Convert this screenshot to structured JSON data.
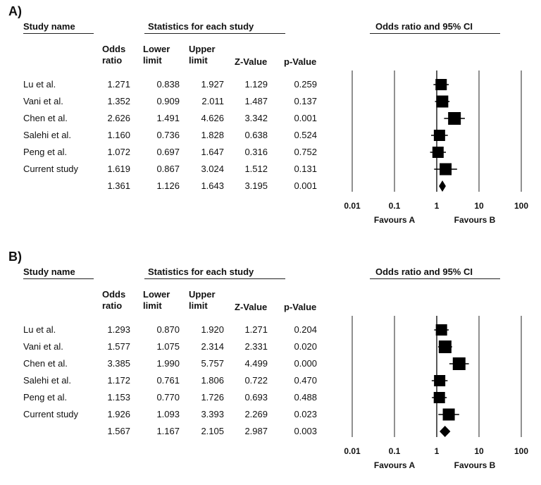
{
  "panels": [
    {
      "label": "A)",
      "headers": {
        "study": "Study name",
        "stats": "Statistics for each study",
        "plot": "Odds ratio and 95% CI"
      },
      "columns": {
        "odds_1": "Odds",
        "odds_2": "ratio",
        "lower_1": "Lower",
        "lower_2": "limit",
        "upper_1": "Upper",
        "upper_2": "limit",
        "z": "Z-Value",
        "p": "p-Value"
      },
      "rows": [
        {
          "name": "Lu et al.",
          "or": "1.271",
          "lower": "0.838",
          "upper": "1.927",
          "z": "1.129",
          "p": "0.259",
          "w": 16
        },
        {
          "name": "Vani et al.",
          "or": "1.352",
          "lower": "0.909",
          "upper": "2.011",
          "z": "1.487",
          "p": "0.137",
          "w": 17
        },
        {
          "name": "Chen et al.",
          "or": "2.626",
          "lower": "1.491",
          "upper": "4.626",
          "z": "3.342",
          "p": "0.001",
          "w": 18
        },
        {
          "name": "Salehi et al.",
          "or": "1.160",
          "lower": "0.736",
          "upper": "1.828",
          "z": "0.638",
          "p": "0.524",
          "w": 16
        },
        {
          "name": "Peng et al.",
          "or": "1.072",
          "lower": "0.697",
          "upper": "1.647",
          "z": "0.316",
          "p": "0.752",
          "w": 16
        },
        {
          "name": "Current study",
          "or": "1.619",
          "lower": "0.867",
          "upper": "3.024",
          "z": "1.512",
          "p": "0.131",
          "w": 17
        }
      ],
      "summary": {
        "name": "",
        "or": "1.361",
        "lower": "1.126",
        "upper": "1.643",
        "z": "3.195",
        "p": "0.001"
      },
      "axis": {
        "ticks": [
          "0.01",
          "0.1",
          "1",
          "10",
          "100"
        ],
        "tick_values": [
          0.01,
          0.1,
          1,
          10,
          100
        ],
        "scale": "log"
      },
      "favours_a": "Favours A",
      "favours_b": "Favours B"
    },
    {
      "label": "B)",
      "headers": {
        "study": "Study name",
        "stats": "Statistics for each study",
        "plot": "Odds ratio and 95% CI"
      },
      "columns": {
        "odds_1": "Odds",
        "odds_2": "ratio",
        "lower_1": "Lower",
        "lower_2": "limit",
        "upper_1": "Upper",
        "upper_2": "limit",
        "z": "Z-Value",
        "p": "p-Value"
      },
      "rows": [
        {
          "name": "Lu et al.",
          "or": "1.293",
          "lower": "0.870",
          "upper": "1.920",
          "z": "1.271",
          "p": "0.204",
          "w": 16
        },
        {
          "name": "Vani et al.",
          "or": "1.577",
          "lower": "1.075",
          "upper": "2.314",
          "z": "2.331",
          "p": "0.020",
          "w": 18
        },
        {
          "name": "Chen et al.",
          "or": "3.385",
          "lower": "1.990",
          "upper": "5.757",
          "z": "4.499",
          "p": "0.000",
          "w": 18
        },
        {
          "name": "Salehi et al.",
          "or": "1.172",
          "lower": "0.761",
          "upper": "1.806",
          "z": "0.722",
          "p": "0.470",
          "w": 16
        },
        {
          "name": "Peng et al.",
          "or": "1.153",
          "lower": "0.770",
          "upper": "1.726",
          "z": "0.693",
          "p": "0.488",
          "w": 16
        },
        {
          "name": "Current study",
          "or": "1.926",
          "lower": "1.093",
          "upper": "3.393",
          "z": "2.269",
          "p": "0.023",
          "w": 17
        }
      ],
      "summary": {
        "name": "",
        "or": "1.567",
        "lower": "1.167",
        "upper": "2.105",
        "z": "2.987",
        "p": "0.003"
      },
      "axis": {
        "ticks": [
          "0.01",
          "0.1",
          "1",
          "10",
          "100"
        ],
        "tick_values": [
          0.01,
          0.1,
          1,
          10,
          100
        ],
        "scale": "log"
      },
      "favours_a": "Favours A",
      "favours_b": "Favours B"
    }
  ],
  "chart_data": [
    {
      "type": "forest",
      "scale": "log",
      "xlim": [
        0.01,
        100
      ],
      "categories": [
        "Lu et al.",
        "Vani et al.",
        "Chen et al.",
        "Salehi et al.",
        "Peng et al.",
        "Current study"
      ],
      "values": [
        1.271,
        1.352,
        2.626,
        1.16,
        1.072,
        1.619
      ],
      "lower": [
        0.838,
        0.909,
        1.491,
        0.736,
        0.697,
        0.867
      ],
      "upper": [
        1.927,
        2.011,
        4.626,
        1.828,
        1.647,
        3.024
      ],
      "pooled": {
        "value": 1.361,
        "lower": 1.126,
        "upper": 1.643
      }
    },
    {
      "type": "forest",
      "scale": "log",
      "xlim": [
        0.01,
        100
      ],
      "categories": [
        "Lu et al.",
        "Vani et al.",
        "Chen et al.",
        "Salehi et al.",
        "Peng et al.",
        "Current study"
      ],
      "values": [
        1.293,
        1.577,
        3.385,
        1.172,
        1.153,
        1.926
      ],
      "lower": [
        0.87,
        1.075,
        1.99,
        0.761,
        0.77,
        1.093
      ],
      "upper": [
        1.92,
        2.314,
        5.757,
        1.806,
        1.726,
        3.393
      ],
      "pooled": {
        "value": 1.567,
        "lower": 1.167,
        "upper": 2.105
      }
    }
  ]
}
